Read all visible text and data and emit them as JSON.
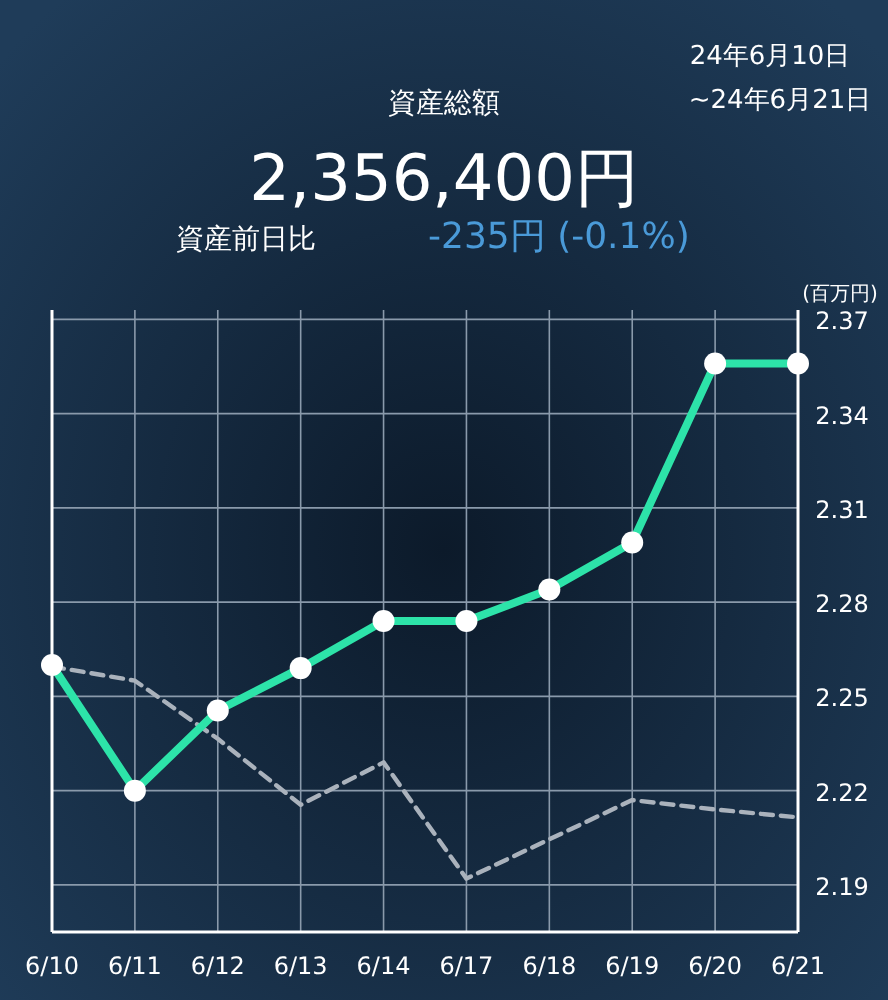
{
  "chart_data": {
    "type": "line",
    "title": "資産総額",
    "subtitle": "2,356,400円",
    "annotations": [
      "資産前日比",
      "-235円 (-0.1%)",
      "24年6月10日",
      "~24年6月21日"
    ],
    "ylabel": "(百万円)",
    "categories": [
      "6/10",
      "6/11",
      "6/12",
      "6/13",
      "6/14",
      "6/17",
      "6/18",
      "6/19",
      "6/20",
      "6/21"
    ],
    "series": [
      {
        "color": "#2de3a9",
        "values": [
          2.26,
          2.22,
          2.2455,
          2.259,
          2.274,
          2.274,
          2.284,
          2.299,
          2.356,
          2.356
        ],
        "marker": "circle",
        "line_style": "solid"
      },
      {
        "color": "#aab2bc",
        "values": [
          2.2595,
          2.255,
          2.2365,
          2.2155,
          2.229,
          2.192,
          2.2045,
          2.217,
          2.214,
          2.2115
        ],
        "marker": "none",
        "line_style": "dashed"
      }
    ],
    "ylim": [
      2.175,
      2.373
    ],
    "yticks": [
      2.19,
      2.22,
      2.25,
      2.28,
      2.31,
      2.34,
      2.37
    ],
    "grid": true
  }
}
